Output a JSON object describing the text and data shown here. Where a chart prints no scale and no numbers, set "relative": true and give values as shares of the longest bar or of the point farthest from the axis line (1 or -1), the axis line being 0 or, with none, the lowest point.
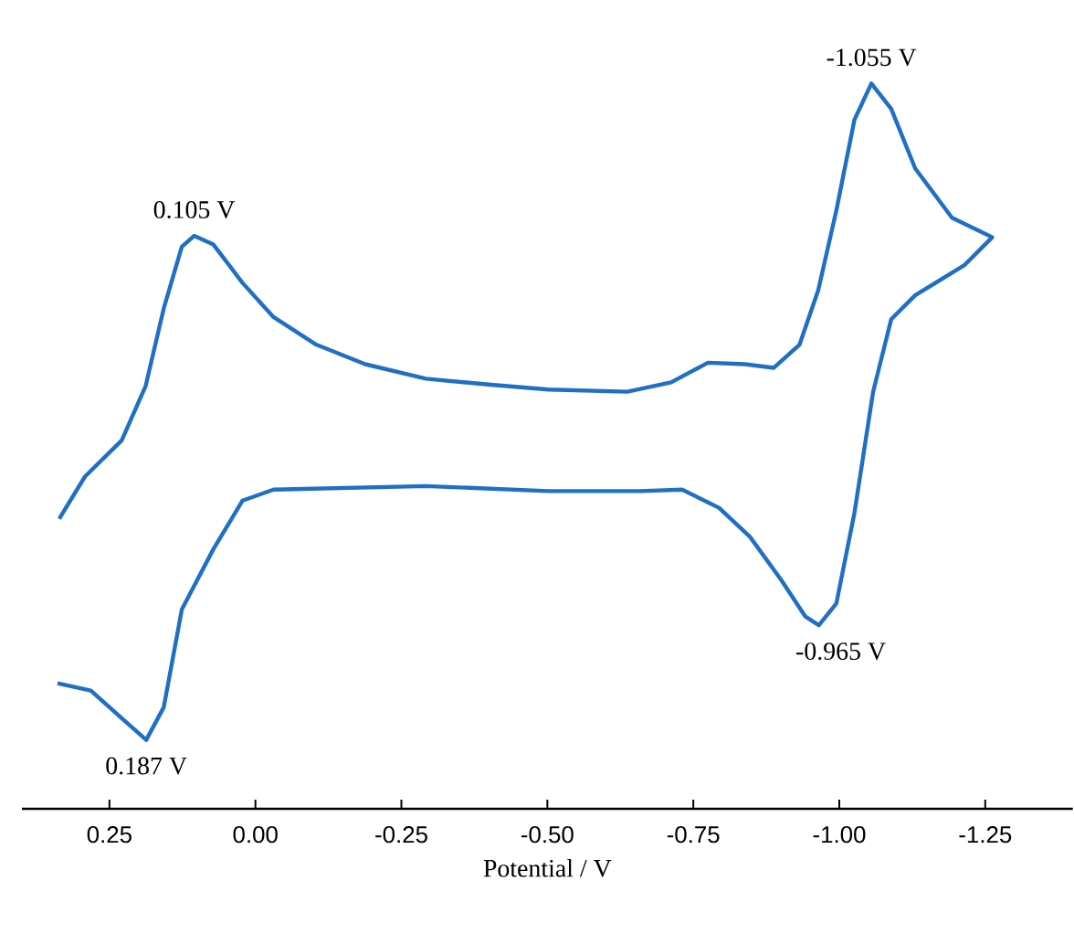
{
  "chart_data": {
    "type": "line",
    "relative": true,
    "xlabel": "Potential / V",
    "xlim": [
      0.4,
      -1.4
    ],
    "xticks": [
      {
        "value": 0.25,
        "label": "0.25"
      },
      {
        "value": 0,
        "label": "0.00"
      },
      {
        "value": -0.25,
        "label": "-0.25"
      },
      {
        "value": -0.5,
        "label": "-0.50"
      },
      {
        "value": -0.75,
        "label": "-0.75"
      },
      {
        "value": -1.0,
        "label": "-1.00"
      },
      {
        "value": -1.25,
        "label": "-1.25"
      }
    ],
    "series": [
      {
        "color": "#1f6fc5",
        "x": [
          0.336,
          0.292,
          0.229,
          0.188,
          0.157,
          0.126,
          0.105,
          0.072,
          0.022,
          -0.031,
          -0.104,
          -0.188,
          -0.292,
          -0.399,
          -0.502,
          -0.637,
          -0.712,
          -0.775,
          -0.838,
          -0.888,
          -0.932,
          -0.964,
          -0.995,
          -1.026,
          -1.055,
          -1.089,
          -1.13,
          -1.193,
          -1.262,
          -1.215,
          -1.13,
          -1.089,
          -1.058,
          -1.026,
          -0.995,
          -0.965,
          -0.942,
          -0.901,
          -0.847,
          -0.794,
          -0.731,
          -0.659,
          -0.502,
          -0.292,
          -0.031,
          0.022,
          0.072,
          0.126,
          0.157,
          0.187,
          0.229,
          0.282,
          0.339
        ],
        "values": [
          0.4,
          0.458,
          0.508,
          0.583,
          0.69,
          0.775,
          0.79,
          0.778,
          0.725,
          0.678,
          0.64,
          0.613,
          0.593,
          0.585,
          0.578,
          0.575,
          0.588,
          0.615,
          0.613,
          0.608,
          0.64,
          0.715,
          0.825,
          0.95,
          1.0,
          0.965,
          0.883,
          0.815,
          0.788,
          0.75,
          0.708,
          0.675,
          0.575,
          0.408,
          0.283,
          0.253,
          0.265,
          0.315,
          0.375,
          0.415,
          0.44,
          0.438,
          0.438,
          0.445,
          0.44,
          0.425,
          0.358,
          0.275,
          0.14,
          0.095,
          0.125,
          0.163,
          0.173
        ]
      }
    ],
    "annotations": [
      {
        "text": "0.105 V",
        "x": 0.105,
        "y": 0.79
      },
      {
        "text": "-1.055 V",
        "x": -1.055,
        "y": 1.0
      },
      {
        "text": "-0.965 V",
        "x": -0.965,
        "y": 0.253
      },
      {
        "text": "0.187 V",
        "x": 0.187,
        "y": 0.095
      }
    ]
  }
}
